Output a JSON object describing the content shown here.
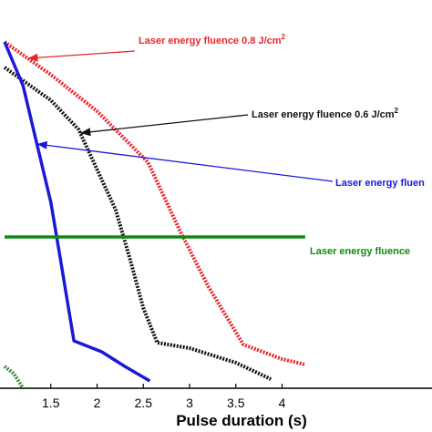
{
  "chart_data": {
    "type": "line",
    "xlabel": "Pulse duration (s)",
    "ylabel": "",
    "title": "",
    "xlim": [
      1.0,
      4.25
    ],
    "x_ticks": [
      "1.5",
      "2",
      "2.5",
      "3",
      "3.5",
      "4"
    ],
    "x_tick_values": [
      1.5,
      2,
      2.5,
      3,
      3.5,
      4
    ],
    "grid": false,
    "series": [
      {
        "name": "Laser energy fluence 0.8 J/cm2",
        "color": "#e8262b",
        "style": "dotted",
        "points": [
          [
            1.0,
            0.95
          ],
          [
            1.5,
            0.86
          ],
          [
            2.0,
            0.76
          ],
          [
            2.55,
            0.62
          ],
          [
            2.9,
            0.43
          ],
          [
            3.2,
            0.28
          ],
          [
            3.58,
            0.12
          ],
          [
            4.0,
            0.08
          ],
          [
            4.25,
            0.065
          ]
        ]
      },
      {
        "name": "Laser energy fluence 0.6 J/cm2",
        "color": "#111111",
        "style": "dotted",
        "points": [
          [
            1.0,
            0.88
          ],
          [
            1.5,
            0.79
          ],
          [
            1.8,
            0.71
          ],
          [
            2.0,
            0.6
          ],
          [
            2.2,
            0.49
          ],
          [
            2.35,
            0.36
          ],
          [
            2.5,
            0.22
          ],
          [
            2.65,
            0.125
          ],
          [
            3.0,
            0.11
          ],
          [
            3.5,
            0.07
          ],
          [
            3.88,
            0.025
          ]
        ]
      },
      {
        "name": "Laser energy fluence",
        "color": "#1a1ad6",
        "style": "solid",
        "points": [
          [
            1.0,
            0.95
          ],
          [
            1.2,
            0.83
          ],
          [
            1.35,
            0.67
          ],
          [
            1.5,
            0.51
          ],
          [
            1.6,
            0.36
          ],
          [
            1.75,
            0.13
          ],
          [
            2.05,
            0.1
          ],
          [
            2.3,
            0.06
          ],
          [
            2.57,
            0.02
          ]
        ]
      },
      {
        "name": "Laser energy fluence",
        "color": "#118a11",
        "style": "solid",
        "points": [
          [
            1.0,
            0.415
          ],
          [
            4.25,
            0.415
          ]
        ]
      },
      {
        "name": "",
        "color": "#3a8a3a",
        "style": "dotted",
        "points": [
          [
            1.0,
            0.06
          ],
          [
            1.1,
            0.04
          ],
          [
            1.2,
            0.0
          ]
        ]
      }
    ],
    "annotations": [
      {
        "text": "Laser energy fluence 0.8 J/cm",
        "sup": "2",
        "color": "#e8262b",
        "arrow_to_series": 0
      },
      {
        "text": "Laser energy fluence 0.6 J/cm",
        "sup": "2",
        "color": "#111111",
        "arrow_to_series": 1
      },
      {
        "text": "Laser energy fluen",
        "sup": "",
        "color": "#1a1ad6",
        "arrow_to_series": 2
      },
      {
        "text": "Laser energy fluence",
        "sup": "",
        "color": "#118a11",
        "arrow_to_series": 3
      }
    ]
  }
}
